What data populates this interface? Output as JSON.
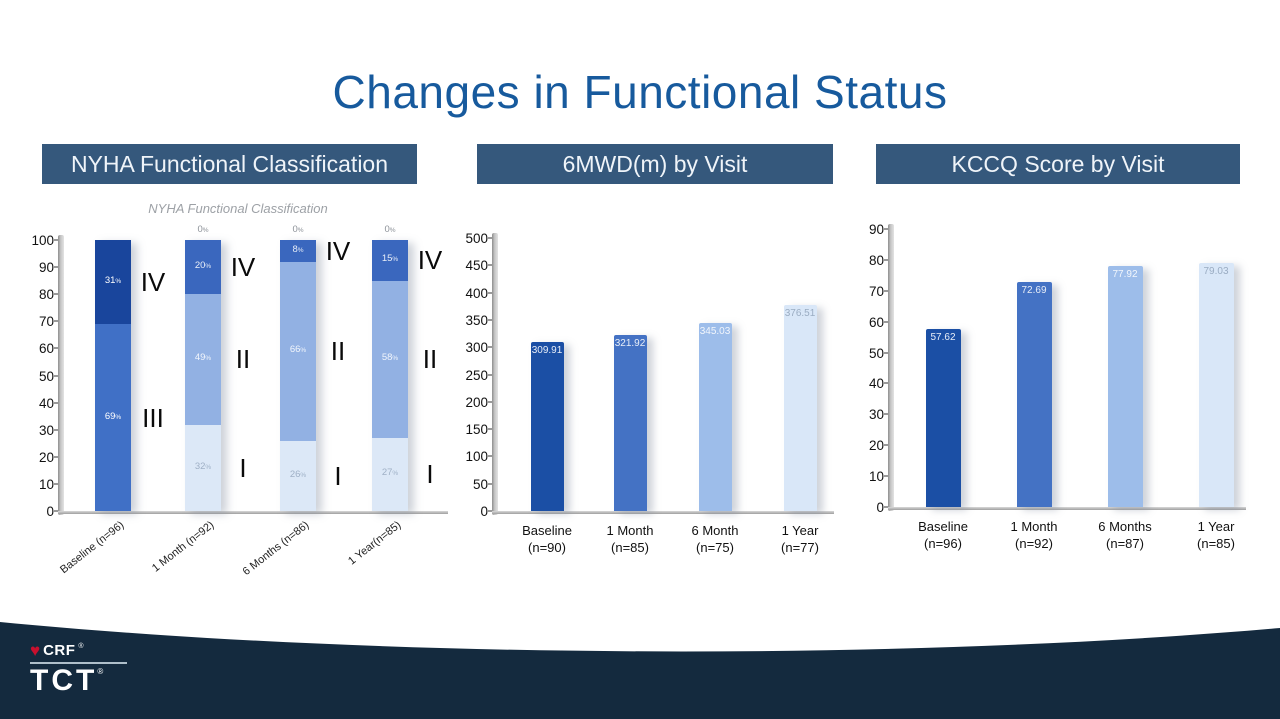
{
  "slide": {
    "title": "Changes in Functional Status"
  },
  "panels": {
    "nyha": {
      "header": "NYHA Functional Classification",
      "subtitle": "NYHA Functional Classification"
    },
    "smwd": {
      "header": "6MWD(m) by Visit"
    },
    "kccq": {
      "header": "KCCQ Score by Visit"
    }
  },
  "footer": {
    "crf": "CRF",
    "tct": "TCT",
    "reg": "®"
  },
  "colors": {
    "title": "#175A9D",
    "header_bg": "#35587C",
    "footer_navy": "#142A3E",
    "heart_red": "#C8102E"
  },
  "chart_data": [
    {
      "id": "nyha",
      "type": "bar",
      "variant": "stacked-100pct",
      "title": "NYHA Functional Classification",
      "xlabel": "",
      "ylabel": "",
      "ylim": [
        0,
        100
      ],
      "ytick_step": 10,
      "grid": false,
      "categories": [
        "Baseline (n=96)",
        "1 Month (n=92)",
        "6 Months (n=86)",
        "1 Year(n=85)"
      ],
      "bars": [
        {
          "category": "Baseline (n=96)",
          "segments": [
            {
              "class": "",
              "value": 0,
              "label": "0",
              "label_pos": "bottom",
              "color": "#4070C6",
              "label_color": "#E8EEF8"
            },
            {
              "class": "III",
              "value": 69,
              "label": "69",
              "label_pos": "in",
              "color": "#4070C6",
              "label_color": "#FFFFFF"
            },
            {
              "class": "IV",
              "value": 31,
              "label": "31",
              "label_pos": "in",
              "color": "#19459C",
              "label_color": "#FFFFFF"
            }
          ]
        },
        {
          "category": "1 Month (n=92)",
          "segments": [
            {
              "class": "I",
              "value": 32,
              "label": "32",
              "label_pos": "in",
              "color": "#DCE8F7",
              "label_color": "#9FB0C6"
            },
            {
              "class": "II",
              "value": 49,
              "label": "49",
              "label_pos": "in",
              "color": "#92B1E3",
              "label_color": "#F2F6FC"
            },
            {
              "class": "IV",
              "value": 20,
              "label": "20",
              "label_pos": "in",
              "color": "#3A67BE",
              "label_color": "#E8EEF8"
            },
            {
              "class": "",
              "value": 0,
              "label": "0",
              "label_pos": "above",
              "color": "",
              "label_color": "#8B9097"
            }
          ]
        },
        {
          "category": "6 Months (n=86)",
          "segments": [
            {
              "class": "I",
              "value": 26,
              "label": "26",
              "label_pos": "in",
              "color": "#DCE8F7",
              "label_color": "#9FB0C6"
            },
            {
              "class": "II",
              "value": 66,
              "label": "66",
              "label_pos": "in",
              "color": "#92B1E3",
              "label_color": "#F2F6FC"
            },
            {
              "class": "IV",
              "value": 8,
              "label": "8",
              "label_pos": "in",
              "color": "#3A67BE",
              "label_color": "#E8EEF8"
            },
            {
              "class": "",
              "value": 0,
              "label": "0",
              "label_pos": "above",
              "color": "",
              "label_color": "#8B9097"
            }
          ]
        },
        {
          "category": "1 Year(n=85)",
          "segments": [
            {
              "class": "I",
              "value": 27,
              "label": "27",
              "label_pos": "in",
              "color": "#DCE8F7",
              "label_color": "#9FB0C6"
            },
            {
              "class": "II",
              "value": 58,
              "label": "58",
              "label_pos": "in",
              "color": "#92B1E3",
              "label_color": "#F2F6FC"
            },
            {
              "class": "IV",
              "value": 15,
              "label": "15",
              "label_pos": "in",
              "color": "#3A67BE",
              "label_color": "#E8EEF8"
            },
            {
              "class": "",
              "value": 0,
              "label": "0",
              "label_pos": "above",
              "color": "",
              "label_color": "#8B9097"
            }
          ]
        }
      ]
    },
    {
      "id": "smwd",
      "type": "bar",
      "title": "6MWD(m) by Visit",
      "xlabel": "",
      "ylabel": "",
      "ylim": [
        0,
        500
      ],
      "ytick_step": 50,
      "grid": false,
      "categories": [
        "Baseline\n(n=90)",
        "1 Month\n(n=85)",
        "6 Month\n(n=75)",
        "1 Year\n(n=77)"
      ],
      "values": [
        309.91,
        321.92,
        345.03,
        376.51
      ],
      "bar_colors": [
        "#1B4FA5",
        "#4472C4",
        "#9DBDEA",
        "#D9E7F8"
      ],
      "value_label_colors": [
        "#E8EEF8",
        "#E8EEF8",
        "#F2F6FC",
        "#9AACC2"
      ]
    },
    {
      "id": "kccq",
      "type": "bar",
      "title": "KCCQ Score by Visit",
      "xlabel": "",
      "ylabel": "",
      "ylim": [
        0,
        90
      ],
      "ytick_step": 10,
      "grid": false,
      "categories": [
        "Baseline\n(n=96)",
        "1 Month\n(n=92)",
        "6 Months\n(n=87)",
        "1 Year\n(n=85)"
      ],
      "values": [
        57.62,
        72.69,
        77.92,
        79.03
      ],
      "bar_colors": [
        "#1B4FA5",
        "#4472C4",
        "#9DBDEA",
        "#D9E7F8"
      ],
      "value_label_colors": [
        "#E8EEF8",
        "#E8EEF8",
        "#F2F6FC",
        "#9AACC2"
      ]
    }
  ]
}
